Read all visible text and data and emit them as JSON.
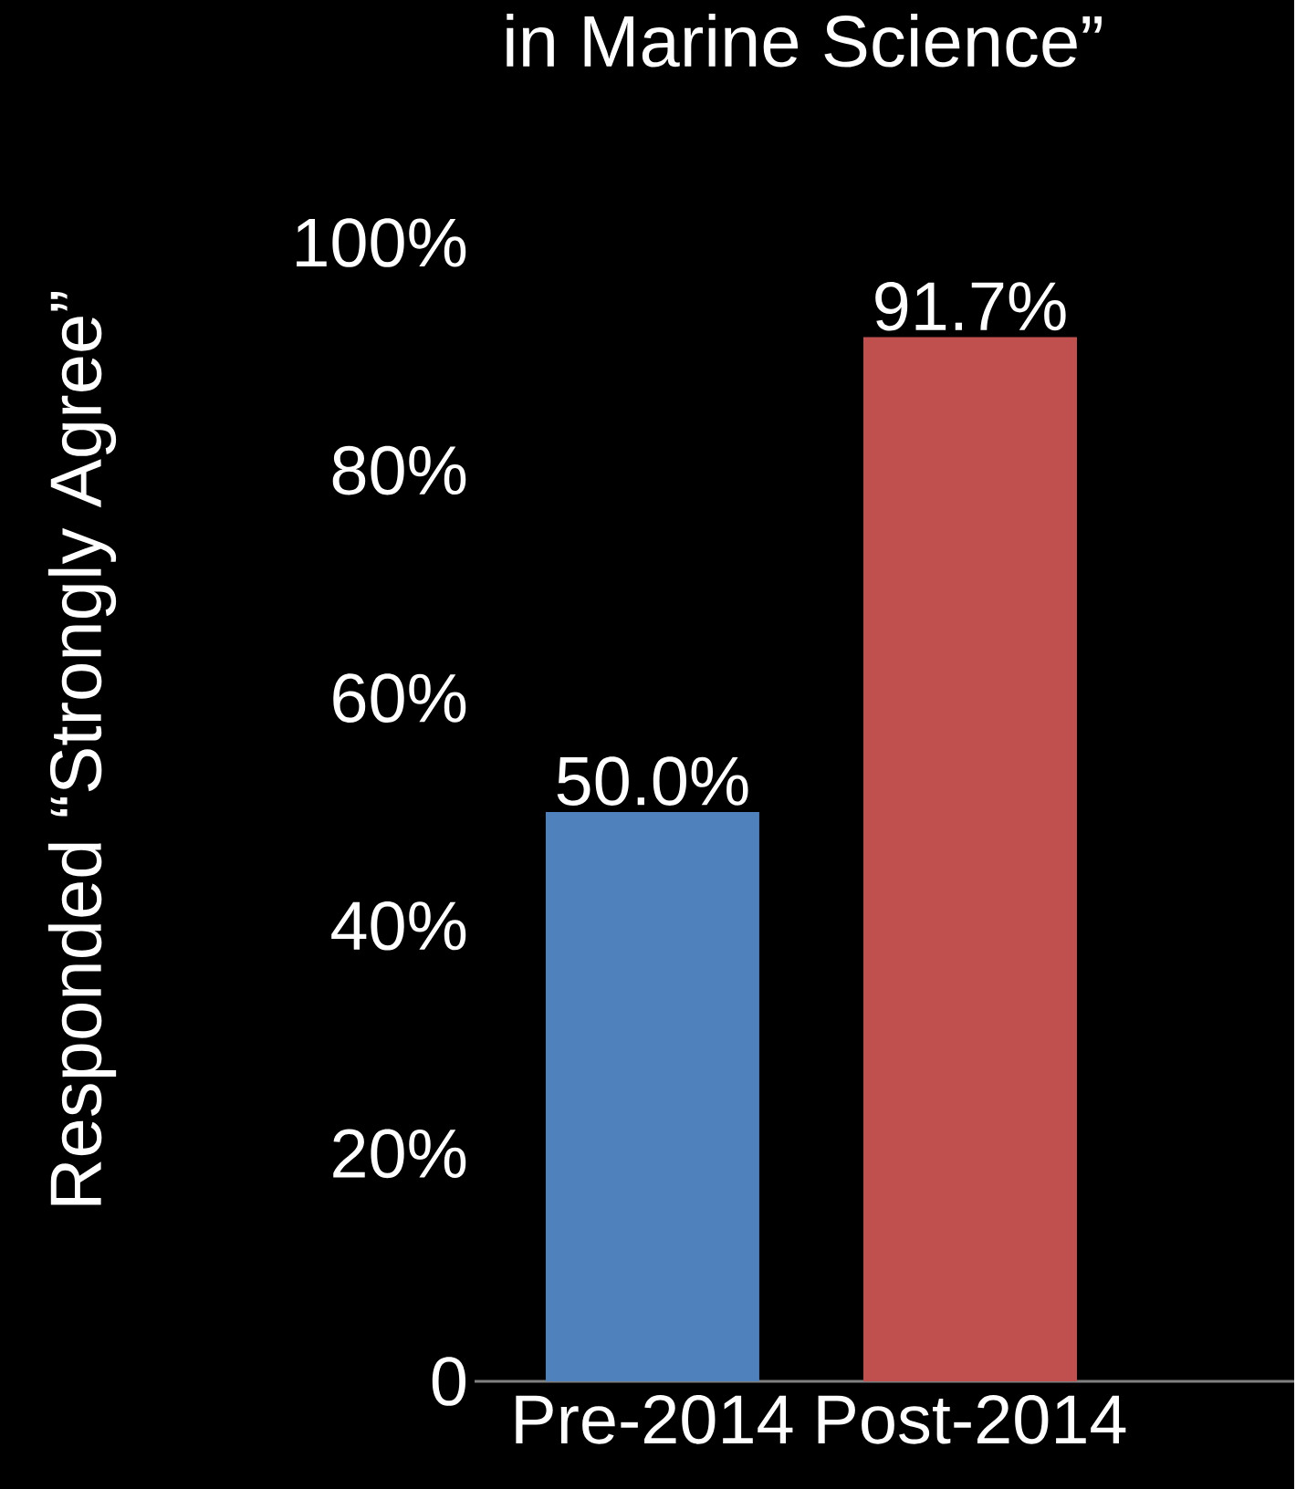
{
  "chart_data": {
    "type": "bar",
    "title": "in Marine Science”",
    "ylabel": "Responded “Strongly Agree”",
    "categories": [
      "Pre-2014",
      "Post-2014"
    ],
    "values": [
      50.0,
      91.7
    ],
    "colors": [
      "#4f81bd",
      "#c0504d"
    ],
    "value_labels": [
      "50.0%",
      "91.7%"
    ],
    "ylim": [
      0,
      100
    ],
    "yticks": [
      {
        "value": 0,
        "label": "0"
      },
      {
        "value": 20,
        "label": "20%"
      },
      {
        "value": 40,
        "label": "40%"
      },
      {
        "value": 60,
        "label": "60%"
      },
      {
        "value": 80,
        "label": "80%"
      },
      {
        "value": 100,
        "label": "100%"
      }
    ],
    "grid": false
  }
}
